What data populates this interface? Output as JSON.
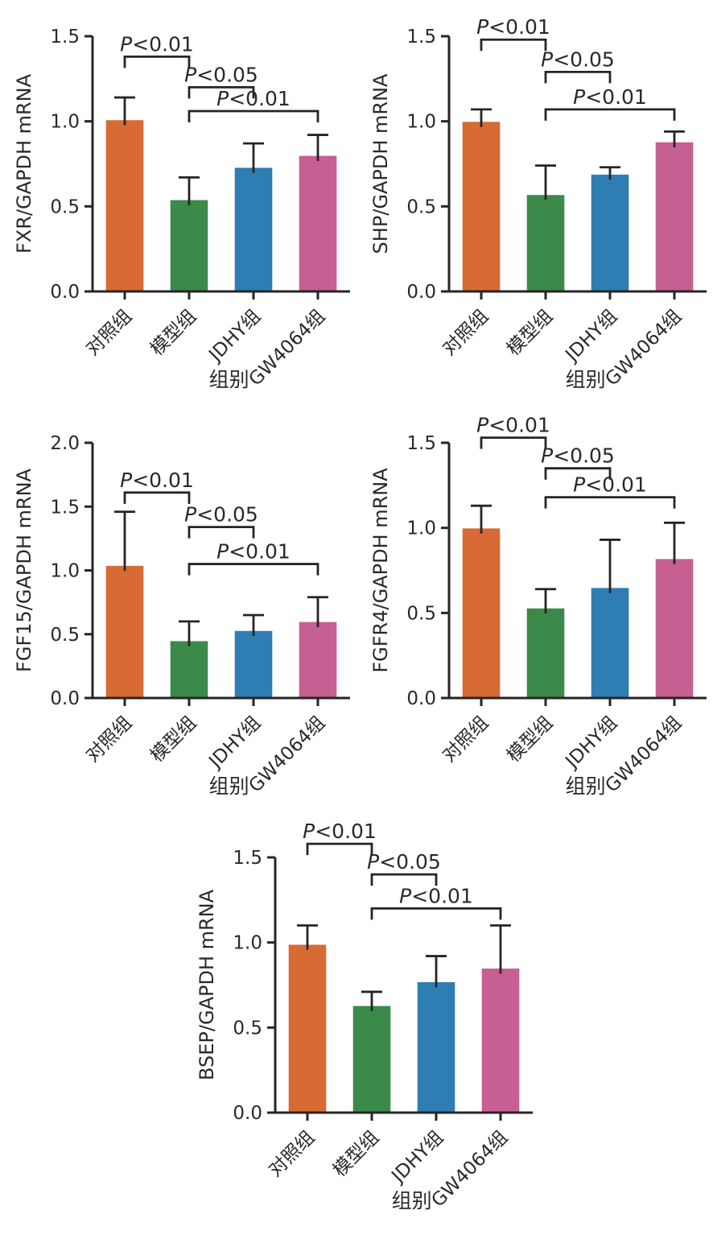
{
  "figure": {
    "background": "#ffffff",
    "text_color": "#2b2829",
    "axis_color": "#282425",
    "xlabel": "组别",
    "categories": [
      "对照组",
      "模型组",
      "JDHY组",
      "GW4064组"
    ],
    "bar_colors": [
      "#d76b33",
      "#3b8a49",
      "#2e7eb3",
      "#c65f92"
    ]
  },
  "chart_data": [
    {
      "type": "bar",
      "id": "fxr",
      "title": "FXR/GAPDH mRNA",
      "ylabel": "FXR/GAPDH mRNA",
      "xlabel": "组别",
      "categories": [
        "对照组",
        "模型组",
        "JDHY组",
        "GW4064组"
      ],
      "values": [
        1.01,
        0.54,
        0.73,
        0.8
      ],
      "errors": [
        0.13,
        0.13,
        0.14,
        0.12
      ],
      "ylim": [
        0,
        1.5
      ],
      "yticks": [
        0,
        0.5,
        1.0,
        1.5
      ],
      "grid": false,
      "significance": [
        {
          "pair": [
            0,
            1
          ],
          "label": "P<0.01",
          "level": 1.38
        },
        {
          "pair": [
            1,
            2
          ],
          "label": "P<0.05",
          "level": 1.2
        },
        {
          "pair": [
            1,
            3
          ],
          "label": "P<0.01",
          "level": 1.06
        }
      ]
    },
    {
      "type": "bar",
      "id": "shp",
      "title": "SHP/GAPDH mRNA",
      "ylabel": "SHP/GAPDH mRNA",
      "xlabel": "组别",
      "categories": [
        "对照组",
        "模型组",
        "JDHY组",
        "GW4064组"
      ],
      "values": [
        1.0,
        0.57,
        0.69,
        0.88
      ],
      "errors": [
        0.07,
        0.17,
        0.04,
        0.06
      ],
      "ylim": [
        0,
        1.5
      ],
      "yticks": [
        0,
        0.5,
        1.0,
        1.5
      ],
      "grid": false,
      "significance": [
        {
          "pair": [
            0,
            1
          ],
          "label": "P<0.01",
          "level": 1.48
        },
        {
          "pair": [
            1,
            2
          ],
          "label": "P<0.05",
          "level": 1.29
        },
        {
          "pair": [
            1,
            3
          ],
          "label": "P<0.01",
          "level": 1.07
        }
      ]
    },
    {
      "type": "bar",
      "id": "fgf15",
      "title": "FGF15/GAPDH mRNA",
      "ylabel": "FGF15/GAPDH mRNA",
      "xlabel": "组别",
      "categories": [
        "对照组",
        "模型组",
        "JDHY组",
        "GW4064组"
      ],
      "values": [
        1.04,
        0.45,
        0.53,
        0.6
      ],
      "errors": [
        0.42,
        0.15,
        0.12,
        0.19
      ],
      "ylim": [
        0,
        2.0
      ],
      "yticks": [
        0,
        0.5,
        1.0,
        1.5,
        2.0
      ],
      "grid": false,
      "significance": [
        {
          "pair": [
            0,
            1
          ],
          "label": "P<0.01",
          "level": 1.61
        },
        {
          "pair": [
            1,
            2
          ],
          "label": "P<0.05",
          "level": 1.34
        },
        {
          "pair": [
            1,
            3
          ],
          "label": "P<0.01",
          "level": 1.05
        }
      ]
    },
    {
      "type": "bar",
      "id": "fgfr4",
      "title": "FGFR4/GAPDH mRNA",
      "ylabel": "FGFR4/GAPDH mRNA",
      "xlabel": "组别",
      "categories": [
        "对照组",
        "模型组",
        "JDHY组",
        "GW4064组"
      ],
      "values": [
        1.0,
        0.53,
        0.65,
        0.82
      ],
      "errors": [
        0.13,
        0.11,
        0.28,
        0.21
      ],
      "ylim": [
        0,
        1.5
      ],
      "yticks": [
        0,
        0.5,
        1.0,
        1.5
      ],
      "grid": false,
      "significance": [
        {
          "pair": [
            0,
            1
          ],
          "label": "P<0.01",
          "level": 1.53
        },
        {
          "pair": [
            1,
            2
          ],
          "label": "P<0.05",
          "level": 1.35
        },
        {
          "pair": [
            1,
            3
          ],
          "label": "P<0.01",
          "level": 1.18
        }
      ]
    },
    {
      "type": "bar",
      "id": "bsep",
      "title": "BSEP/GAPDH mRNA",
      "ylabel": "BSEP/GAPDH mRNA",
      "xlabel": "组别",
      "categories": [
        "对照组",
        "模型组",
        "JDHY组",
        "GW4064组"
      ],
      "values": [
        0.99,
        0.63,
        0.77,
        0.85
      ],
      "errors": [
        0.11,
        0.08,
        0.15,
        0.25
      ],
      "ylim": [
        0,
        1.5
      ],
      "yticks": [
        0,
        0.5,
        1.0,
        1.5
      ],
      "grid": false,
      "significance": [
        {
          "pair": [
            0,
            1
          ],
          "label": "P<0.01",
          "level": 1.58
        },
        {
          "pair": [
            1,
            2
          ],
          "label": "P<0.05",
          "level": 1.4
        },
        {
          "pair": [
            1,
            3
          ],
          "label": "P<0.01",
          "level": 1.2
        }
      ]
    }
  ]
}
